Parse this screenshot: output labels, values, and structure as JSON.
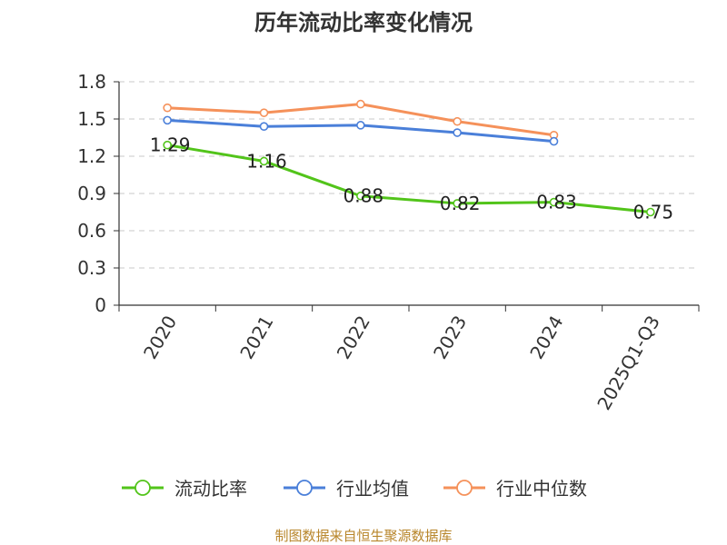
{
  "chart_data": {
    "type": "line",
    "title": "历年流动比率变化情况",
    "categories": [
      "2020",
      "2021",
      "2022",
      "2023",
      "2024",
      "2025Q1-Q3"
    ],
    "ylim": [
      0,
      1.8
    ],
    "yticks": [
      "0",
      "0.3",
      "0.6",
      "0.9",
      "1.2",
      "1.5",
      "1.8"
    ],
    "grid": true,
    "legend_position": "bottom",
    "series": [
      {
        "name": "流动比率",
        "color": "#52c41a",
        "values": [
          1.29,
          1.16,
          0.88,
          0.82,
          0.83,
          0.75
        ],
        "labels": [
          "1.29",
          "1.16",
          "0.88",
          "0.82",
          "0.83",
          "0.75"
        ]
      },
      {
        "name": "行业均值",
        "color": "#4a7fd9",
        "values": [
          1.49,
          1.44,
          1.45,
          1.39,
          1.32,
          null
        ]
      },
      {
        "name": "行业中位数",
        "color": "#f5915a",
        "values": [
          1.59,
          1.55,
          1.62,
          1.48,
          1.37,
          null
        ]
      }
    ],
    "source": "制图数据来自恒生聚源数据库"
  }
}
